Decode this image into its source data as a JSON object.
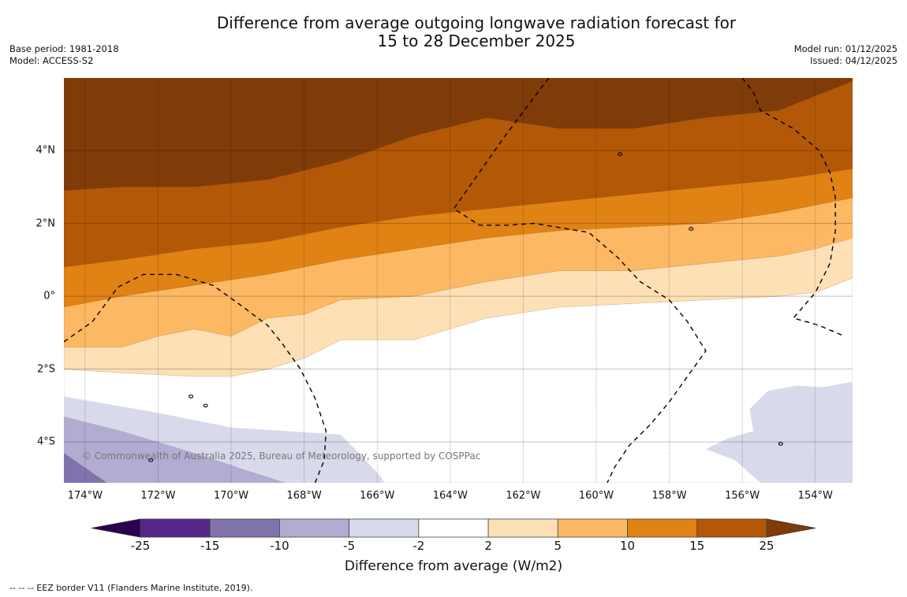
{
  "title": {
    "line1": "Difference from average outgoing longwave radiation forecast for",
    "line2": "15 to 28 December 2025"
  },
  "meta_left": {
    "base_period": "Base period: 1981-2018",
    "model": "Model: ACCESS-S2"
  },
  "meta_right": {
    "model_run": "Model run: 01/12/2025",
    "issued": "Issued: 04/12/2025"
  },
  "copyright": "© Commonwealth of Australia 2025, Bureau of Meteorology, supported by COSPPac",
  "footnote": "--  --  -- EEZ border V11 (Flanders Marine Institute, 2019).",
  "colorbar": {
    "title": "Difference from average (W/m2)",
    "levels": [
      "-25",
      "-15",
      "-10",
      "-5",
      "-2",
      "2",
      "5",
      "10",
      "15",
      "25"
    ],
    "colors": [
      "#2d004b",
      "#542788",
      "#8073ac",
      "#b2abd2",
      "#d8daeb",
      "#ffffff",
      "#fee0b6",
      "#fdb863",
      "#e08214",
      "#b35806",
      "#7f3b08"
    ]
  },
  "chart_data": {
    "type": "heatmap",
    "title": "Difference from average outgoing longwave radiation forecast for 15 to 28 December 2025",
    "xlabel": "",
    "ylabel": "",
    "units": "W/m2",
    "lon_range": [
      -174.58,
      -152.98
    ],
    "lat_range": [
      -5.12,
      5.99
    ],
    "lon_ticks": [
      {
        "value": -174,
        "label": "174°W"
      },
      {
        "value": -172,
        "label": "172°W"
      },
      {
        "value": -170,
        "label": "170°W"
      },
      {
        "value": -168,
        "label": "168°W"
      },
      {
        "value": -166,
        "label": "166°W"
      },
      {
        "value": -164,
        "label": "164°W"
      },
      {
        "value": -162,
        "label": "162°W"
      },
      {
        "value": -160,
        "label": "160°W"
      },
      {
        "value": -158,
        "label": "158°W"
      },
      {
        "value": -156,
        "label": "156°W"
      },
      {
        "value": -154,
        "label": "154°W"
      }
    ],
    "lat_ticks": [
      {
        "value": 4,
        "label": "4°N"
      },
      {
        "value": 2,
        "label": "2°N"
      },
      {
        "value": 0,
        "label": "0°"
      },
      {
        "value": -2,
        "label": "2°S"
      },
      {
        "value": -4,
        "label": "4°S"
      }
    ],
    "grid": true,
    "legend": "colorbar-bottom",
    "bands": [
      {
        "name": "band-15-25",
        "range": [
          15,
          25
        ],
        "color": "#b35806",
        "boundary_lat_by_lon": [
          [
            -174.58,
            2.9
          ],
          [
            -173,
            3.0
          ],
          [
            -171,
            3.0
          ],
          [
            -169,
            3.2
          ],
          [
            -167,
            3.7
          ],
          [
            -165,
            4.4
          ],
          [
            -163,
            4.9
          ],
          [
            -161,
            4.6
          ],
          [
            -159,
            4.6
          ],
          [
            -157,
            4.9
          ],
          [
            -155,
            5.1
          ],
          [
            -154,
            5.5
          ],
          [
            -152.98,
            5.9
          ]
        ]
      },
      {
        "name": "band-10-15",
        "range": [
          10,
          15
        ],
        "color": "#e08214",
        "boundary_lat_by_lon": [
          [
            -174.58,
            0.8
          ],
          [
            -173,
            1.0
          ],
          [
            -171,
            1.3
          ],
          [
            -169,
            1.5
          ],
          [
            -167,
            1.9
          ],
          [
            -165,
            2.2
          ],
          [
            -163,
            2.4
          ],
          [
            -161,
            2.6
          ],
          [
            -159,
            2.8
          ],
          [
            -157,
            3.0
          ],
          [
            -155,
            3.2
          ],
          [
            -152.98,
            3.5
          ]
        ]
      },
      {
        "name": "band-5-10",
        "range": [
          5,
          10
        ],
        "color": "#fdb863",
        "boundary_lat_by_lon": [
          [
            -174.58,
            -0.3
          ],
          [
            -173,
            0.0
          ],
          [
            -171,
            0.3
          ],
          [
            -169,
            0.6
          ],
          [
            -167,
            1.0
          ],
          [
            -165,
            1.3
          ],
          [
            -163,
            1.6
          ],
          [
            -161,
            1.8
          ],
          [
            -159,
            1.9
          ],
          [
            -157,
            2.0
          ],
          [
            -155,
            2.3
          ],
          [
            -152.98,
            2.7
          ]
        ]
      },
      {
        "name": "band-2-5",
        "range": [
          2,
          5
        ],
        "color": "#fee0b6",
        "boundary_lat_by_lon": [
          [
            -174.58,
            -1.4
          ],
          [
            -173,
            -1.4
          ],
          [
            -172,
            -1.1
          ],
          [
            -171,
            -0.9
          ],
          [
            -170,
            -1.1
          ],
          [
            -169,
            -0.6
          ],
          [
            -168,
            -0.5
          ],
          [
            -167,
            -0.1
          ],
          [
            -165,
            0.0
          ],
          [
            -163,
            0.4
          ],
          [
            -161,
            0.7
          ],
          [
            -159,
            0.7
          ],
          [
            -157,
            0.9
          ],
          [
            -155,
            1.1
          ],
          [
            -154,
            1.3
          ],
          [
            -152.98,
            1.6
          ]
        ]
      },
      {
        "name": "band-neg2-2",
        "range": [
          -2,
          2
        ],
        "color": "#ffffff",
        "boundary_lat_by_lon": [
          [
            -174.58,
            -2.0
          ],
          [
            -173,
            -2.1
          ],
          [
            -171,
            -2.2
          ],
          [
            -170,
            -2.2
          ],
          [
            -169,
            -2.0
          ],
          [
            -168,
            -1.7
          ],
          [
            -167,
            -1.2
          ],
          [
            -165,
            -1.2
          ],
          [
            -163,
            -0.6
          ],
          [
            -161,
            -0.3
          ],
          [
            -159,
            -0.2
          ],
          [
            -157,
            -0.1
          ],
          [
            -155,
            0.0
          ],
          [
            -154,
            0.1
          ],
          [
            -152.98,
            0.5
          ]
        ]
      }
    ],
    "negative_regions": [
      {
        "name": "region-neg5-neg2-sw",
        "range": [
          -5,
          -2
        ],
        "color": "#d8daeb",
        "polygon": [
          [
            -174.58,
            -2.75
          ],
          [
            -172,
            -3.2
          ],
          [
            -170,
            -3.6
          ],
          [
            -168.5,
            -3.7
          ],
          [
            -167,
            -3.8
          ],
          [
            -166.5,
            -4.3
          ],
          [
            -165.9,
            -4.95
          ],
          [
            -165.8,
            -5.12
          ],
          [
            -174.58,
            -5.12
          ]
        ]
      },
      {
        "name": "region-neg10-neg5-sw",
        "range": [
          -10,
          -5
        ],
        "color": "#b2abd2",
        "polygon": [
          [
            -174.58,
            -3.3
          ],
          [
            -173,
            -3.7
          ],
          [
            -171,
            -4.3
          ],
          [
            -169.5,
            -4.8
          ],
          [
            -168.5,
            -5.12
          ],
          [
            -174.58,
            -5.12
          ]
        ]
      },
      {
        "name": "region-neg15-neg10-sw",
        "range": [
          -15,
          -10
        ],
        "color": "#8073ac",
        "polygon": [
          [
            -174.58,
            -4.3
          ],
          [
            -173.4,
            -5.12
          ],
          [
            -174.58,
            -5.12
          ]
        ]
      },
      {
        "name": "region-neg5-neg2-se",
        "range": [
          -5,
          -2
        ],
        "color": "#d8daeb",
        "polygon": [
          [
            -152.98,
            -2.35
          ],
          [
            -153.8,
            -2.5
          ],
          [
            -154.5,
            -2.45
          ],
          [
            -155.3,
            -2.6
          ],
          [
            -155.8,
            -3.1
          ],
          [
            -155.7,
            -3.7
          ],
          [
            -156.4,
            -3.9
          ],
          [
            -157.0,
            -4.2
          ],
          [
            -156.2,
            -4.5
          ],
          [
            -155.5,
            -5.12
          ],
          [
            -152.98,
            -5.12
          ]
        ]
      }
    ],
    "eez_borders": [
      [
        [
          -174.58,
          -1.25
        ],
        [
          -173.8,
          -0.7
        ],
        [
          -173.1,
          0.25
        ],
        [
          -172.4,
          0.6
        ],
        [
          -171.5,
          0.6
        ],
        [
          -170.5,
          0.3
        ],
        [
          -169.8,
          -0.2
        ],
        [
          -169.0,
          -0.8
        ],
        [
          -168.6,
          -1.3
        ],
        [
          -168.1,
          -2.0
        ],
        [
          -167.7,
          -2.8
        ],
        [
          -167.4,
          -3.7
        ],
        [
          -167.45,
          -4.5
        ],
        [
          -167.7,
          -5.12
        ]
      ],
      [
        [
          -161.3,
          5.99
        ],
        [
          -162.5,
          4.4
        ],
        [
          -163.2,
          3.4
        ],
        [
          -163.9,
          2.4
        ],
        [
          -163.2,
          1.95
        ],
        [
          -162.4,
          1.95
        ],
        [
          -161.7,
          2.0
        ],
        [
          -160.8,
          1.85
        ],
        [
          -160.2,
          1.75
        ],
        [
          -159.4,
          1.05
        ],
        [
          -158.8,
          0.4
        ],
        [
          -158.0,
          -0.1
        ],
        [
          -157.5,
          -0.7
        ],
        [
          -157.0,
          -1.5
        ],
        [
          -157.5,
          -2.2
        ],
        [
          -158.0,
          -2.9
        ],
        [
          -158.5,
          -3.5
        ],
        [
          -159.1,
          -4.1
        ],
        [
          -159.5,
          -4.7
        ],
        [
          -159.7,
          -5.12
        ]
      ],
      [
        [
          -156.0,
          5.99
        ],
        [
          -155.7,
          5.6
        ],
        [
          -155.5,
          5.1
        ],
        [
          -154.6,
          4.6
        ],
        [
          -153.9,
          4.0
        ],
        [
          -153.6,
          3.4
        ],
        [
          -153.45,
          2.7
        ],
        [
          -153.45,
          1.8
        ],
        [
          -153.6,
          0.9
        ],
        [
          -154.0,
          0.1
        ],
        [
          -154.6,
          -0.6
        ],
        [
          -153.9,
          -0.8
        ],
        [
          -153.2,
          -1.1
        ]
      ]
    ],
    "islands": [
      {
        "name": "island-christmas",
        "lon": -157.4,
        "lat": 1.85
      },
      {
        "name": "island-fanning",
        "lon": -159.35,
        "lat": 3.9
      },
      {
        "name": "island-swains",
        "lon": -171.1,
        "lat": -2.75
      },
      {
        "name": "island-small-1",
        "lon": -170.7,
        "lat": -3.0
      },
      {
        "name": "island-small-2",
        "lon": -172.2,
        "lat": -4.5
      },
      {
        "name": "island-small-3",
        "lon": -154.95,
        "lat": -4.05
      }
    ]
  }
}
